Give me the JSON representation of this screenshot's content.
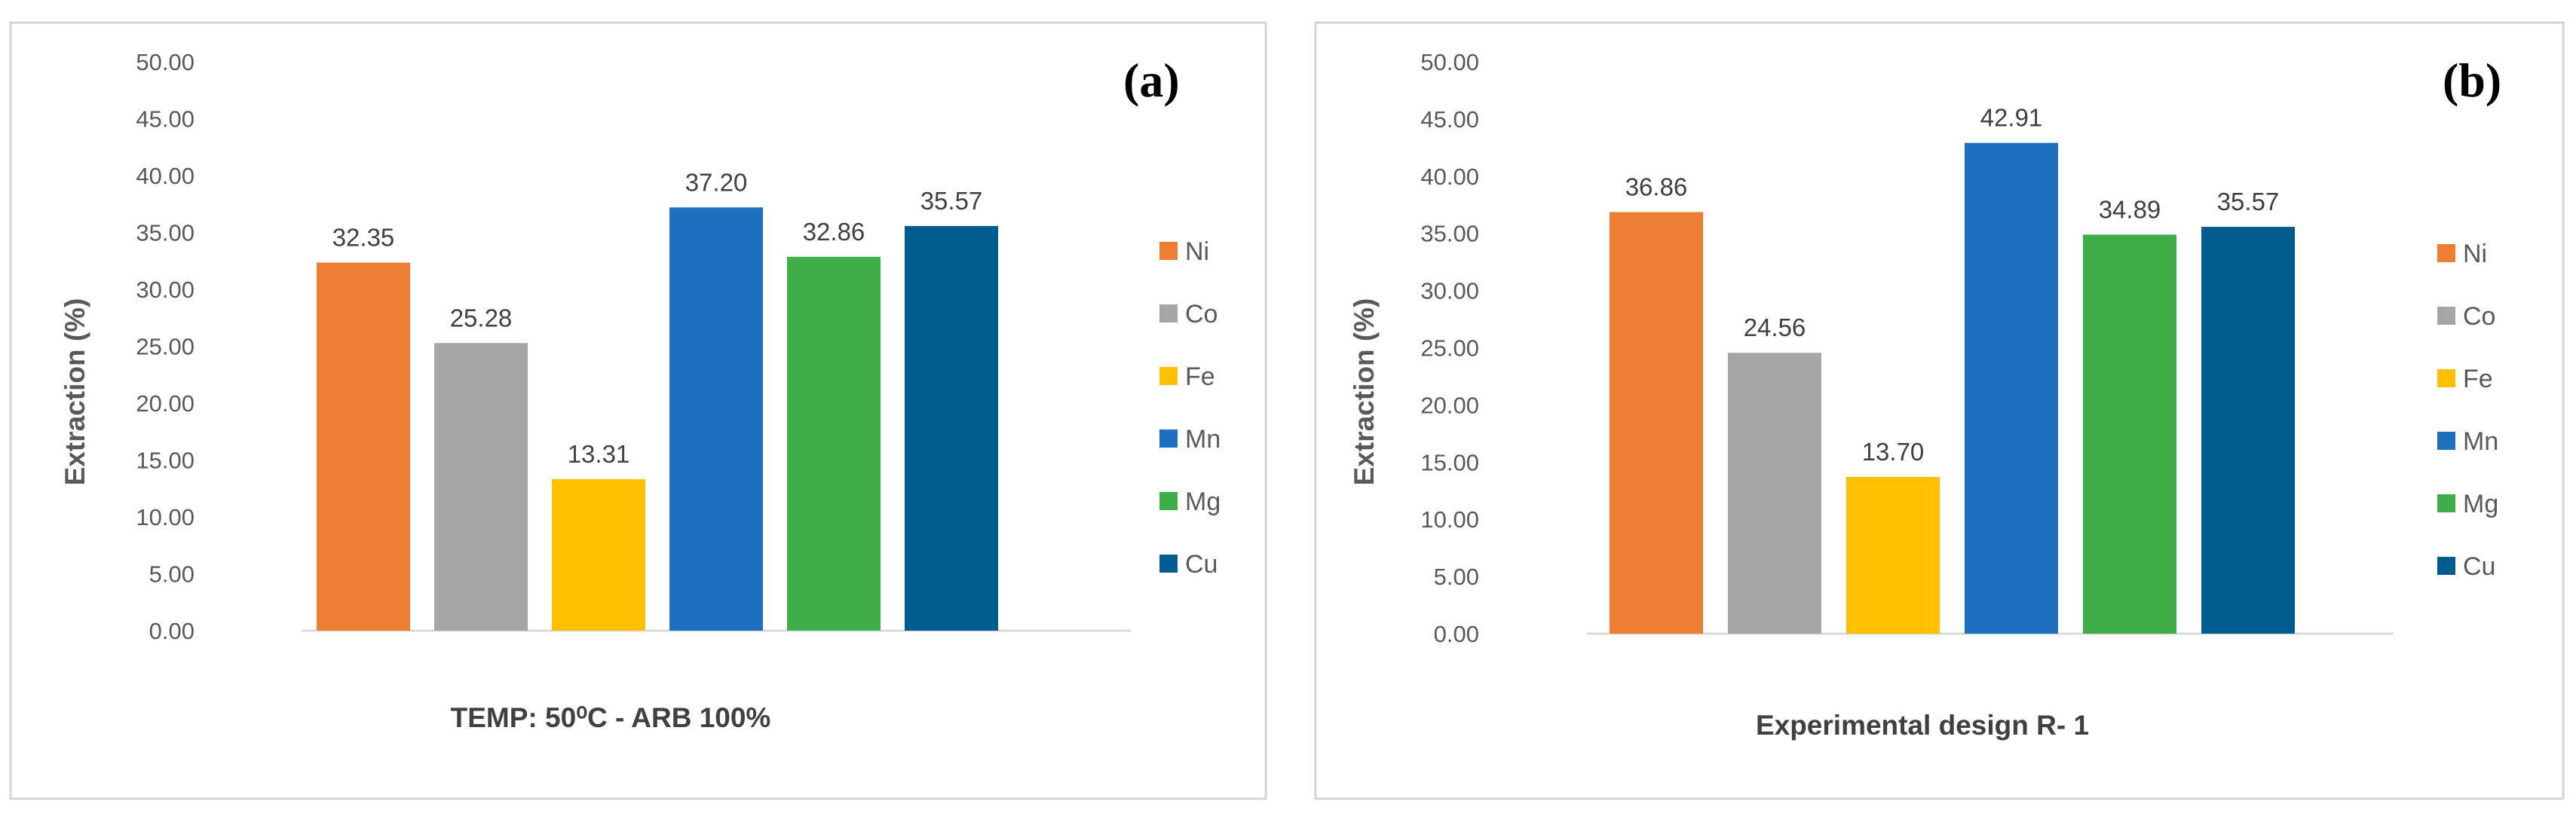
{
  "chart_data": [
    {
      "type": "bar",
      "panel_label": "(a)",
      "xlabel": "TEMP: 50⁰C - ARB 100%",
      "ylabel": "Extraction (%)",
      "ylim": [
        0,
        50
      ],
      "yticks": [
        "0.00",
        "5.00",
        "10.00",
        "15.00",
        "20.00",
        "25.00",
        "30.00",
        "35.00",
        "40.00",
        "45.00",
        "50.00"
      ],
      "legend_position": "right",
      "series": [
        {
          "name": "Ni",
          "value": 32.35,
          "label": "32.35",
          "color": "#ED7D31"
        },
        {
          "name": "Co",
          "value": 25.28,
          "label": "25.28",
          "color": "#A5A5A5"
        },
        {
          "name": "Fe",
          "value": 13.31,
          "label": "13.31",
          "color": "#FFC000"
        },
        {
          "name": "Mn",
          "value": 37.2,
          "label": "37.20",
          "color": "#1F6FBF"
        },
        {
          "name": "Mg",
          "value": 32.86,
          "label": "32.86",
          "color": "#3FAE49"
        },
        {
          "name": "Cu",
          "value": 35.57,
          "label": "35.57",
          "color": "#005B8F"
        }
      ]
    },
    {
      "type": "bar",
      "panel_label": "(b)",
      "xlabel": "Experimental design R- 1",
      "ylabel": "Extraction (%)",
      "ylim": [
        0,
        50
      ],
      "yticks": [
        "0.00",
        "5.00",
        "10.00",
        "15.00",
        "20.00",
        "25.00",
        "30.00",
        "35.00",
        "40.00",
        "45.00",
        "50.00"
      ],
      "legend_position": "right",
      "series": [
        {
          "name": "Ni",
          "value": 36.86,
          "label": "36.86",
          "color": "#ED7D31"
        },
        {
          "name": "Co",
          "value": 24.56,
          "label": "24.56",
          "color": "#A5A5A5"
        },
        {
          "name": "Fe",
          "value": 13.7,
          "label": "13.70",
          "color": "#FFC000"
        },
        {
          "name": "Mn",
          "value": 42.91,
          "label": "42.91",
          "color": "#1F6FBF"
        },
        {
          "name": "Mg",
          "value": 34.89,
          "label": "34.89",
          "color": "#3FAE49"
        },
        {
          "name": "Cu",
          "value": 35.57,
          "label": "35.57",
          "color": "#005B8F"
        }
      ]
    }
  ]
}
